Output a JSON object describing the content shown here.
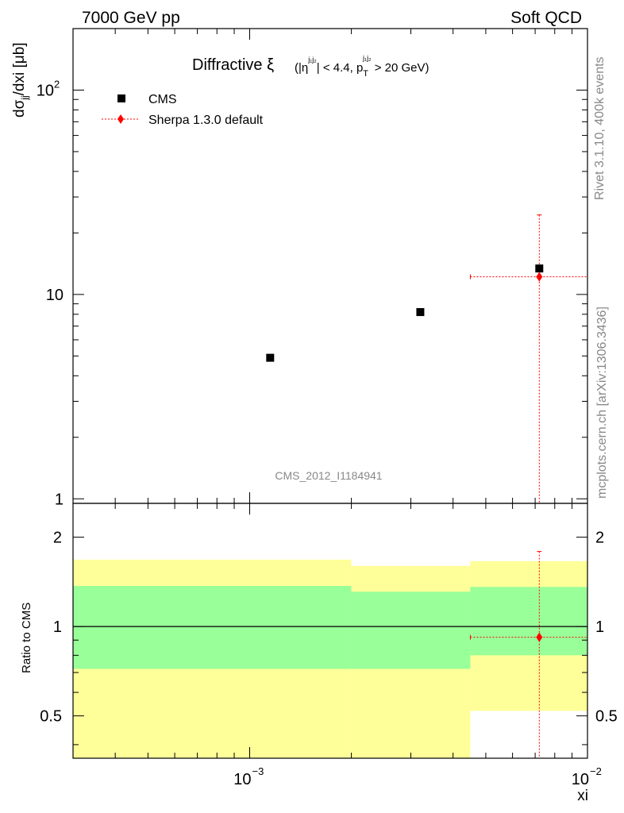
{
  "header": {
    "left": "7000 GeV pp",
    "right": "Soft QCD"
  },
  "side": {
    "rivet": "Rivet 3.1.10,  400k events",
    "source": "mcplots.cern.ch [arXiv:1306.3436]"
  },
  "chart_data": [
    {
      "type": "scatter",
      "title_main": "Diffractive ξ",
      "title_cut1": "(|η",
      "title_sup1": "j₁j₂",
      "title_cut2": "| < 4.4, p",
      "title_sub2": "T",
      "title_sup2": "j₁j₂",
      "title_cut3": " > 20 GeV)",
      "ylabel_main": "dσ",
      "ylabel_sub": "jj",
      "ylabel_tail": "/dxi [μb]",
      "xlabel": "xi",
      "x_log": true,
      "y_log": true,
      "xlim": [
        0.0003,
        0.01
      ],
      "ylim": [
        0.95,
        200
      ],
      "x_tick_labels": [
        {
          "value": 0.001,
          "base": "10",
          "exp": "−3"
        },
        {
          "value": 0.01,
          "base": "10",
          "exp": "−2"
        }
      ],
      "y_tick_labels": [
        {
          "value": 1,
          "text": "1"
        },
        {
          "value": 10,
          "text": "10"
        },
        {
          "value": 100,
          "base": "10",
          "exp": "2"
        }
      ],
      "watermark": "CMS_2012_I1184941",
      "series": [
        {
          "name": "CMS",
          "color": "#000000",
          "marker": "square",
          "points": [
            {
              "x": 0.00115,
              "y": 4.9
            },
            {
              "x": 0.0032,
              "y": 8.2
            },
            {
              "x": 0.0072,
              "y": 13.4
            }
          ]
        },
        {
          "name": "Sherpa 1.3.0 default",
          "color": "#ff0000",
          "marker": "diamond",
          "line": "dotted",
          "points": [
            {
              "x": 0.0072,
              "y": 12.2,
              "xlo": 0.0045,
              "xhi": 0.01,
              "ylo": 0.95,
              "yhi": 24.5
            }
          ]
        }
      ]
    },
    {
      "type": "scatter",
      "ylabel": "Ratio to CMS",
      "y_log": true,
      "x_log": true,
      "xlim": [
        0.0003,
        0.01
      ],
      "ylim": [
        0.36,
        2.6
      ],
      "y_tick_labels": [
        {
          "value": 0.5,
          "text": "0.5"
        },
        {
          "value": 1,
          "text": "1"
        },
        {
          "value": 2,
          "text": "2"
        }
      ],
      "reference_line": 1,
      "bands": [
        {
          "xlo": 0.0003,
          "xhi": 0.002,
          "yellow": [
            0.36,
            1.68
          ],
          "green": [
            0.72,
            1.37
          ]
        },
        {
          "xlo": 0.002,
          "xhi": 0.0045,
          "yellow": [
            0.36,
            1.6
          ],
          "green": [
            0.72,
            1.31
          ]
        },
        {
          "xlo": 0.0045,
          "xhi": 0.01,
          "yellow": [
            0.52,
            1.66
          ],
          "green": [
            0.8,
            1.36
          ]
        }
      ],
      "band_colors": {
        "yellow": "#ffff99",
        "green": "#99ff99"
      },
      "series": [
        {
          "name": "Sherpa 1.3.0 default",
          "color": "#ff0000",
          "points": [
            {
              "x": 0.0072,
              "y": 0.92,
              "xlo": 0.0045,
              "xhi": 0.01,
              "ylo": 0.36,
              "yhi": 1.79
            }
          ]
        }
      ]
    }
  ]
}
